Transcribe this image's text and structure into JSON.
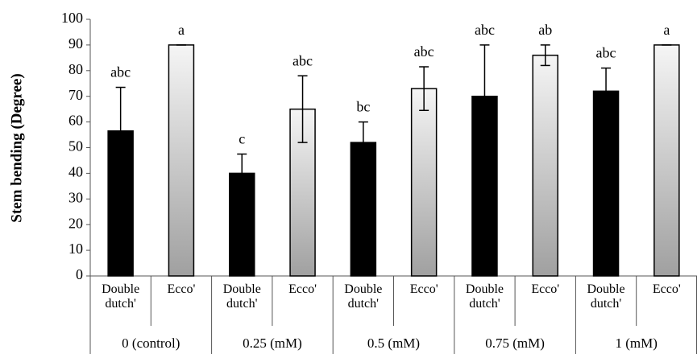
{
  "chart_data": {
    "type": "bar",
    "y_label": "Stem bending (Degree)",
    "categories": [
      "0 (control)",
      "0.25 (mM)",
      "0.5 (mM)",
      "0.75 (mM)",
      "1 (mM)"
    ],
    "series": [
      {
        "name": "Double dutch'",
        "color": "#000000",
        "values": [
          56.5,
          40,
          52,
          70,
          72
        ],
        "errors": [
          17,
          7.5,
          8,
          20,
          9
        ],
        "labels": [
          "abc",
          "c",
          "bc",
          "abc",
          "abc"
        ]
      },
      {
        "name": "Ecco'",
        "color": [
          "#f5f5f5",
          "#a0a0a0"
        ],
        "values": [
          90,
          65,
          73,
          86,
          90
        ],
        "errors": [
          0,
          13,
          8.5,
          4,
          0
        ],
        "labels": [
          "a",
          "abc",
          "abc",
          "ab",
          "a"
        ]
      }
    ],
    "ylim": [
      0,
      100
    ],
    "yticks": [
      0,
      10,
      20,
      30,
      40,
      50,
      60,
      70,
      80,
      90,
      100
    ]
  }
}
